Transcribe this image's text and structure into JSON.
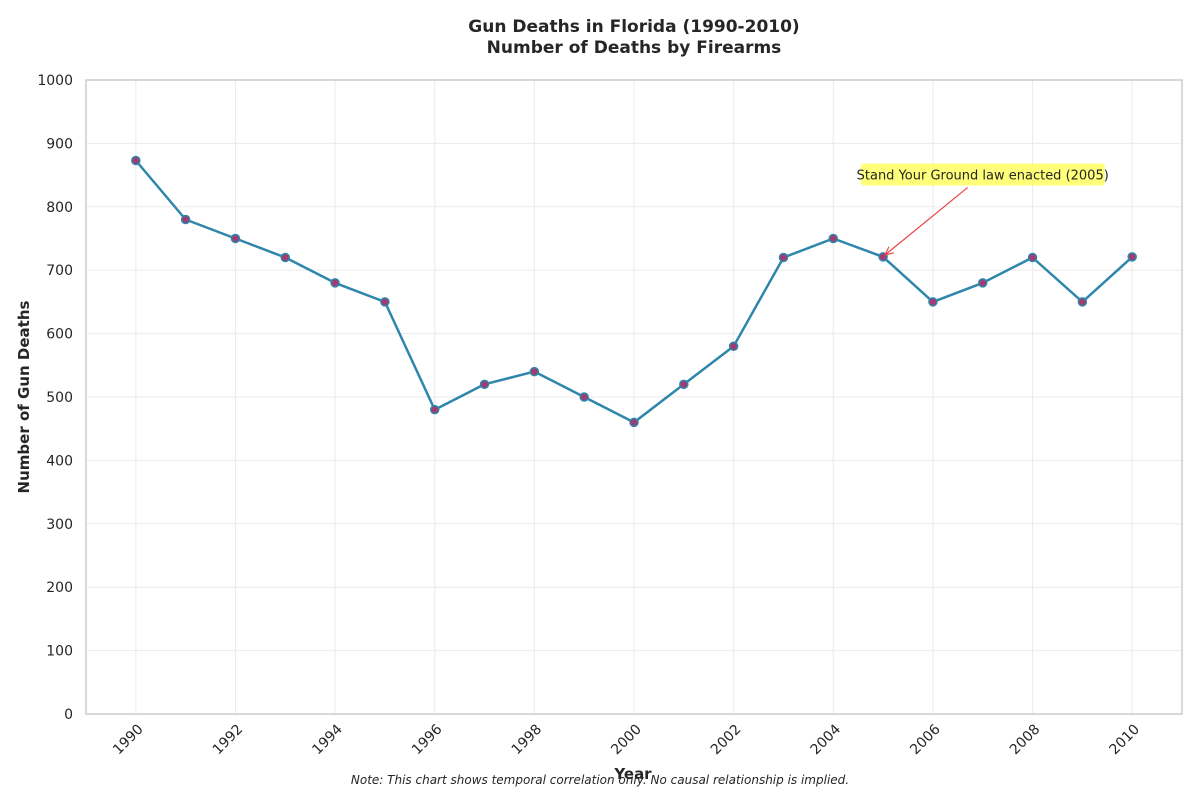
{
  "chart_data": {
    "type": "line",
    "title": "Gun Deaths in Florida (1990-2010)",
    "subtitle": "Number of Deaths by Firearms",
    "xlabel": "Year",
    "ylabel": "Number of Gun Deaths",
    "x": [
      1990,
      1991,
      1992,
      1993,
      1994,
      1995,
      1996,
      1997,
      1998,
      1999,
      2000,
      2001,
      2002,
      2003,
      2004,
      2005,
      2006,
      2007,
      2008,
      2009,
      2010
    ],
    "series": [
      {
        "values": [
          873,
          780,
          750,
          720,
          680,
          650,
          480,
          520,
          540,
          500,
          460,
          520,
          580,
          720,
          750,
          721,
          650,
          680,
          720,
          650,
          721
        ]
      }
    ],
    "xlim": [
      1989,
      2011
    ],
    "ylim": [
      0,
      1000
    ],
    "x_ticks": [
      "1990",
      "1992",
      "1994",
      "1996",
      "1998",
      "2000",
      "2002",
      "2004",
      "2006",
      "2008",
      "2010"
    ],
    "y_ticks": [
      "0",
      "100",
      "200",
      "300",
      "400",
      "500",
      "600",
      "700",
      "800",
      "900",
      "1000"
    ],
    "grid": true,
    "annotation": {
      "text": "Stand Your Ground law enacted (2005)",
      "x": 2005,
      "y": 721
    },
    "note": "Note: This chart shows temporal correlation only. No causal relationship is implied.",
    "colors": {
      "line": "#2e86ab",
      "marker_fill": "#a23b72",
      "annotation_box": "#ffff4d",
      "annotation_arrow": "#ee4444",
      "grid": "#ebebeb",
      "axes": "#cccccc"
    }
  }
}
